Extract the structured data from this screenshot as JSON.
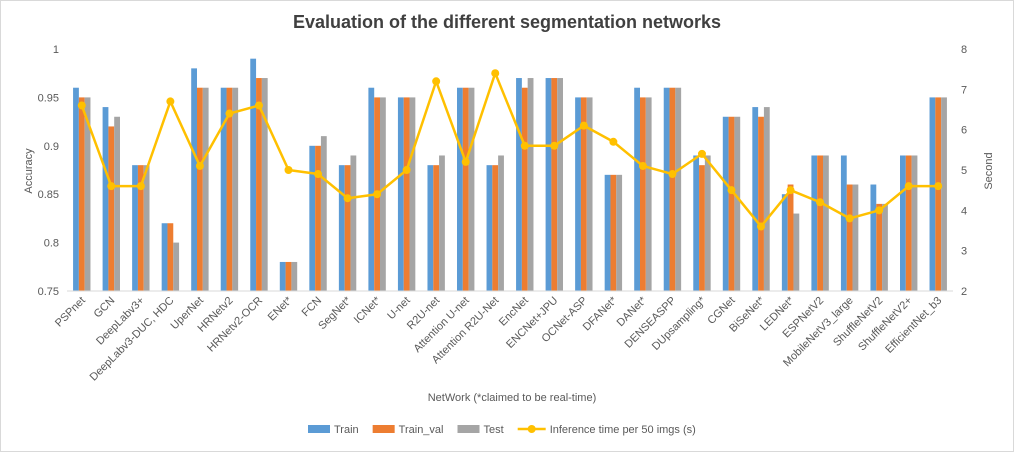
{
  "chart_data": {
    "type": "bar",
    "title": "Evaluation of the different segmentation networks",
    "xlabel": "NetWork (*claimed to be real-time)",
    "ylabel": "Accuracy",
    "y2label": "Second",
    "ylim": [
      0.75,
      1
    ],
    "y2lim": [
      2,
      8
    ],
    "yticks": [
      "0.75",
      "0.8",
      "0.85",
      "0.9",
      "0.95",
      "1"
    ],
    "y2ticks": [
      "2",
      "3",
      "4",
      "5",
      "6",
      "7",
      "8"
    ],
    "grid": false,
    "legend_position": "bottom",
    "categories": [
      "PSPnet",
      "GCN",
      "DeepLabv3+",
      "DeepLabv3-DUC, HDC",
      "UperNet",
      "HRNetv2",
      "HRNetv2-OCR",
      "ENet*",
      "FCN",
      "SegNet*",
      "ICNet*",
      "U-net",
      "R2U-net",
      "Attention U-net",
      "Attention R2U-Net",
      "EncNet",
      "ENCNet+JPU",
      "OCNet-ASP",
      "DFANet*",
      "DANet*",
      "DENSEASPP",
      "DUpsampling*",
      "CGNet",
      "BiSeNet*",
      "LEDNet*",
      "ESPNetV2",
      "MobileNetV3_large",
      "ShuffleNetV2",
      "ShuffleNetV2+",
      "EfficientNet_b3"
    ],
    "series": [
      {
        "name": "Train",
        "kind": "bar",
        "axis": "left",
        "color": "#5b9bd5",
        "values": [
          0.96,
          0.94,
          0.88,
          0.82,
          0.98,
          0.96,
          0.99,
          0.78,
          0.9,
          0.88,
          0.96,
          0.95,
          0.88,
          0.96,
          0.88,
          0.97,
          0.97,
          0.95,
          0.87,
          0.96,
          0.96,
          0.89,
          0.93,
          0.94,
          0.85,
          0.89,
          0.89,
          0.86,
          0.89,
          0.95
        ]
      },
      {
        "name": "Train_val",
        "kind": "bar",
        "axis": "left",
        "color": "#ed7d31",
        "values": [
          0.95,
          0.92,
          0.88,
          0.82,
          0.96,
          0.96,
          0.97,
          0.78,
          0.9,
          0.88,
          0.95,
          0.95,
          0.88,
          0.96,
          0.88,
          0.96,
          0.97,
          0.95,
          0.87,
          0.95,
          0.96,
          0.88,
          0.93,
          0.93,
          0.86,
          0.89,
          0.86,
          0.84,
          0.89,
          0.95
        ]
      },
      {
        "name": "Test",
        "kind": "bar",
        "axis": "left",
        "color": "#a5a5a5",
        "values": [
          0.95,
          0.93,
          0.88,
          0.8,
          0.96,
          0.96,
          0.97,
          0.78,
          0.91,
          0.89,
          0.95,
          0.95,
          0.89,
          0.96,
          0.89,
          0.97,
          0.97,
          0.95,
          0.87,
          0.95,
          0.96,
          0.89,
          0.93,
          0.94,
          0.83,
          0.89,
          0.86,
          0.84,
          0.89,
          0.95
        ]
      },
      {
        "name": "Inference time per 50 imgs (s)",
        "kind": "line",
        "axis": "right",
        "color": "#ffc000",
        "values": [
          6.6,
          4.6,
          4.6,
          6.7,
          5.1,
          6.4,
          6.6,
          5.0,
          4.9,
          4.3,
          4.4,
          5.0,
          7.2,
          5.2,
          7.4,
          5.6,
          5.6,
          6.1,
          5.7,
          5.1,
          4.9,
          5.4,
          4.5,
          3.6,
          4.5,
          4.2,
          3.8,
          4.0,
          4.6,
          4.6
        ]
      }
    ]
  }
}
